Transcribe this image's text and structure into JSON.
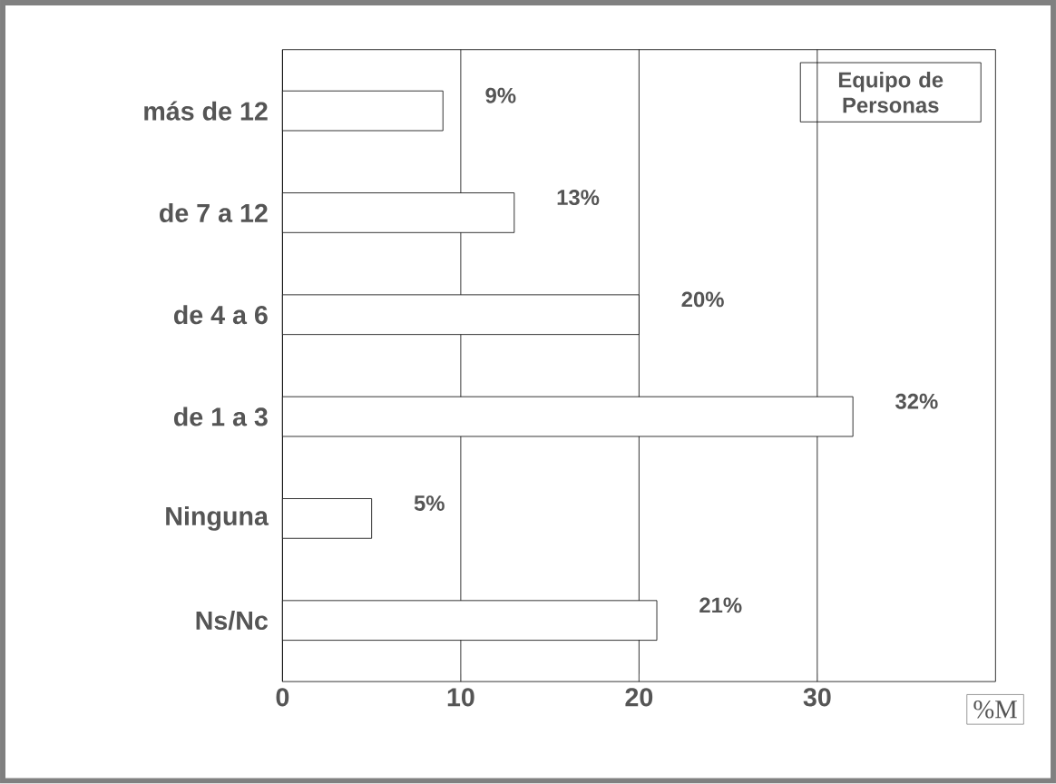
{
  "chart_data": {
    "type": "bar",
    "orientation": "horizontal",
    "title": "Equipo de Personas",
    "xlabel": "%M",
    "categories": [
      "más de 12",
      "de 7 a 12",
      "de 4 a 6",
      "de 1 a 3",
      "Ninguna",
      "Ns/Nc"
    ],
    "values": [
      9,
      13,
      20,
      32,
      5,
      21
    ],
    "value_labels": [
      "9%",
      "13%",
      "20%",
      "32%",
      "5%",
      "21%"
    ],
    "color": "#ffffff",
    "xlim": [
      0,
      40
    ],
    "xticks": [
      0,
      10,
      20,
      30
    ],
    "grid": "x"
  }
}
